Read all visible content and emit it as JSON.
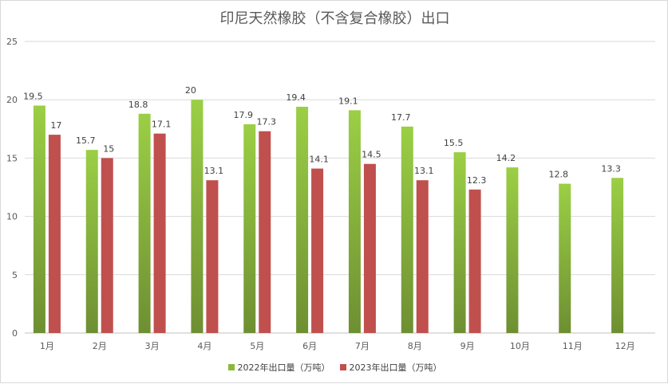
{
  "chart_data": {
    "type": "bar",
    "title": "印尼天然橡胶（不含复合橡胶）出口",
    "categories": [
      "1月",
      "2月",
      "3月",
      "4月",
      "5月",
      "6月",
      "7月",
      "8月",
      "9月",
      "10月",
      "11月",
      "12月"
    ],
    "series": [
      {
        "name": "2022年出口量（万吨）",
        "values": [
          19.5,
          15.7,
          18.8,
          20,
          17.9,
          19.4,
          19.1,
          17.7,
          15.5,
          14.2,
          12.8,
          13.3
        ],
        "color": "#8ab83a"
      },
      {
        "name": "2023年出口量（万吨）",
        "values": [
          17,
          15,
          17.1,
          13.1,
          17.3,
          14.1,
          14.5,
          13.1,
          12.3,
          null,
          null,
          null
        ],
        "color": "#c0504d"
      }
    ],
    "ylim": [
      0,
      25
    ],
    "yticks": [
      0,
      5,
      10,
      15,
      20,
      25
    ],
    "grid": true,
    "legend_position": "bottom"
  }
}
